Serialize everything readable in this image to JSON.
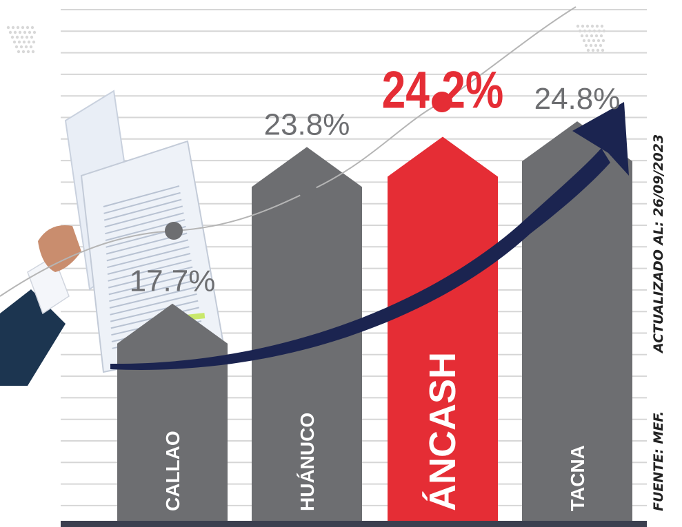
{
  "chart_data": {
    "type": "bar",
    "categories": [
      "CALLAO",
      "HUÁNUCO",
      "ÁNCASH",
      "TACNA"
    ],
    "values": [
      17.7,
      23.8,
      24.2,
      24.8
    ],
    "value_labels": [
      "17.7%",
      "23.8%",
      "24.2%",
      "24.8%"
    ],
    "highlight_category": "ÁNCASH",
    "grid": true,
    "trend_arrow": true,
    "title": "",
    "xlabel": "",
    "ylabel": ""
  },
  "colors": {
    "bar": "#6d6e71",
    "highlight": "#e52d35",
    "arrow": "#1b2450",
    "grid": "#d6d6d6",
    "curve": "#b5b5b5",
    "dot": "#6d6e71",
    "baseline": "#3b3f4f"
  },
  "side_notes": {
    "updated": "ACTUALIZADO AL: 26/09/2023",
    "source": "FUENTE: MEF."
  },
  "decorations": [
    "hand-holding-newspaper",
    "dot-pattern"
  ]
}
